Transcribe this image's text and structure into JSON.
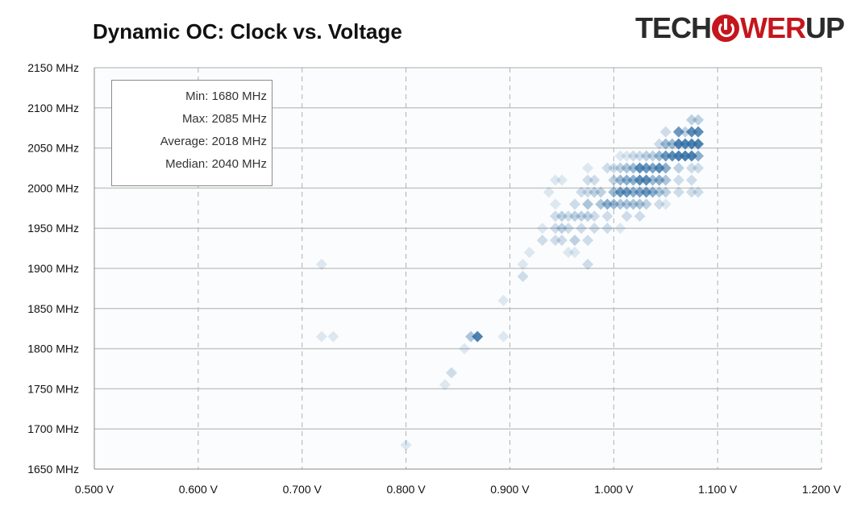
{
  "logo": {
    "text": "TECHPOWERUP",
    "part1": "TECH",
    "part2": "WER",
    "part3": "UP"
  },
  "chart_data": {
    "type": "scatter",
    "title": "Dynamic OC: Clock vs. Voltage",
    "xlabel": "",
    "ylabel": "",
    "xlim": [
      0.5,
      1.2
    ],
    "ylim": [
      1650,
      2150
    ],
    "x_ticks": [
      "0.500 V",
      "0.600 V",
      "0.700 V",
      "0.800 V",
      "0.900 V",
      "1.000 V",
      "1.100 V",
      "1.200 V"
    ],
    "y_ticks": [
      "2150 MHz",
      "2100 MHz",
      "2050 MHz",
      "2000 MHz",
      "1950 MHz",
      "1900 MHz",
      "1850 MHz",
      "1800 MHz",
      "1750 MHz",
      "1700 MHz",
      "1650 MHz"
    ],
    "grid": true,
    "color": "#2e6da4",
    "stats": [
      {
        "label": "Min:",
        "value": "1680 MHz"
      },
      {
        "label": "Max:",
        "value": "2085 MHz"
      },
      {
        "label": "Average:",
        "value": "2018 MHz"
      },
      {
        "label": "Median:",
        "value": "2040 MHz"
      }
    ],
    "points_format": [
      "voltage_V",
      "clock_MHz",
      "density"
    ],
    "points": [
      [
        1.075,
        2085,
        0.3
      ],
      [
        1.0813,
        2085,
        0.3
      ],
      [
        1.0625,
        2070,
        0.8
      ],
      [
        1.075,
        2070,
        0.9
      ],
      [
        1.0813,
        2070,
        0.9
      ],
      [
        1.05,
        2070,
        0.2
      ],
      [
        1.0688,
        2070,
        0.3
      ],
      [
        1.05,
        2055,
        0.5
      ],
      [
        1.0563,
        2055,
        0.5
      ],
      [
        1.0625,
        2055,
        1
      ],
      [
        1.0688,
        2055,
        1
      ],
      [
        1.075,
        2055,
        1
      ],
      [
        1.0813,
        2055,
        1
      ],
      [
        1.0438,
        2055,
        0.2
      ],
      [
        1.0375,
        2040,
        0.3
      ],
      [
        1.0438,
        2040,
        0.5
      ],
      [
        1.05,
        2040,
        0.8
      ],
      [
        1.0563,
        2040,
        0.9
      ],
      [
        1.0625,
        2040,
        1
      ],
      [
        1.0688,
        2040,
        1
      ],
      [
        1.075,
        2040,
        1
      ],
      [
        1.0813,
        2040,
        0.6
      ],
      [
        1.0313,
        2040,
        0.3
      ],
      [
        1.025,
        2040,
        0.2
      ],
      [
        1.0188,
        2040,
        0.2
      ],
      [
        1.0125,
        2040,
        0.1
      ],
      [
        1.0063,
        2040,
        0.1
      ],
      [
        0.975,
        2025,
        0.1
      ],
      [
        0.9938,
        2025,
        0.2
      ],
      [
        1.0,
        2025,
        0.2
      ],
      [
        1.0063,
        2025,
        0.3
      ],
      [
        1.0125,
        2025,
        0.4
      ],
      [
        1.0188,
        2025,
        0.5
      ],
      [
        1.025,
        2025,
        0.9
      ],
      [
        1.0313,
        2025,
        0.8
      ],
      [
        1.0375,
        2025,
        0.7
      ],
      [
        1.0438,
        2025,
        0.9
      ],
      [
        1.05,
        2025,
        0.6
      ],
      [
        1.0625,
        2025,
        0.3
      ],
      [
        1.075,
        2025,
        0.2
      ],
      [
        1.0813,
        2025,
        0.2
      ],
      [
        0.9438,
        2010,
        0.1
      ],
      [
        0.95,
        2010,
        0.1
      ],
      [
        0.975,
        2010,
        0.2
      ],
      [
        0.9813,
        2010,
        0.2
      ],
      [
        1.0,
        2010,
        0.3
      ],
      [
        1.0063,
        2010,
        0.5
      ],
      [
        1.0125,
        2010,
        0.6
      ],
      [
        1.0188,
        2010,
        0.6
      ],
      [
        1.025,
        2010,
        0.9
      ],
      [
        1.0313,
        2010,
        0.9
      ],
      [
        1.0375,
        2010,
        0.5
      ],
      [
        1.0438,
        2010,
        0.6
      ],
      [
        1.05,
        2010,
        0.4
      ],
      [
        1.0625,
        2010,
        0.2
      ],
      [
        1.075,
        2010,
        0.2
      ],
      [
        0.9375,
        1995,
        0.1
      ],
      [
        0.9688,
        1995,
        0.2
      ],
      [
        0.975,
        1995,
        0.2
      ],
      [
        0.9813,
        1995,
        0.3
      ],
      [
        0.9875,
        1995,
        0.3
      ],
      [
        1.0,
        1995,
        0.5
      ],
      [
        1.0063,
        1995,
        0.8
      ],
      [
        1.0125,
        1995,
        0.8
      ],
      [
        1.0188,
        1995,
        0.6
      ],
      [
        1.025,
        1995,
        0.7
      ],
      [
        1.0313,
        1995,
        0.8
      ],
      [
        1.0375,
        1995,
        0.6
      ],
      [
        1.0438,
        1995,
        0.4
      ],
      [
        1.05,
        1995,
        0.3
      ],
      [
        1.0625,
        1995,
        0.2
      ],
      [
        1.075,
        1995,
        0.2
      ],
      [
        1.0813,
        1995,
        0.2
      ],
      [
        0.9438,
        1980,
        0.1
      ],
      [
        0.9625,
        1980,
        0.2
      ],
      [
        0.975,
        1980,
        0.4
      ],
      [
        0.9875,
        1980,
        0.4
      ],
      [
        0.9938,
        1980,
        0.6
      ],
      [
        1.0,
        1980,
        0.5
      ],
      [
        1.0063,
        1980,
        0.4
      ],
      [
        1.0125,
        1980,
        0.4
      ],
      [
        1.0188,
        1980,
        0.4
      ],
      [
        1.025,
        1980,
        0.4
      ],
      [
        1.0313,
        1980,
        0.3
      ],
      [
        1.0438,
        1980,
        0.2
      ],
      [
        1.05,
        1980,
        0.1
      ],
      [
        0.9438,
        1965,
        0.2
      ],
      [
        0.95,
        1965,
        0.3
      ],
      [
        0.9563,
        1965,
        0.2
      ],
      [
        0.9625,
        1965,
        0.3
      ],
      [
        0.9688,
        1965,
        0.3
      ],
      [
        0.975,
        1965,
        0.3
      ],
      [
        0.9813,
        1965,
        0.2
      ],
      [
        0.9938,
        1965,
        0.2
      ],
      [
        1.0125,
        1965,
        0.2
      ],
      [
        1.025,
        1965,
        0.2
      ],
      [
        0.9313,
        1950,
        0.1
      ],
      [
        0.9438,
        1950,
        0.2
      ],
      [
        0.95,
        1950,
        0.3
      ],
      [
        0.9563,
        1950,
        0.2
      ],
      [
        0.9688,
        1950,
        0.2
      ],
      [
        0.9813,
        1950,
        0.2
      ],
      [
        0.9938,
        1950,
        0.2
      ],
      [
        1.0063,
        1950,
        0.1
      ],
      [
        0.9313,
        1935,
        0.2
      ],
      [
        0.9438,
        1935,
        0.2
      ],
      [
        0.95,
        1935,
        0.2
      ],
      [
        0.9625,
        1935,
        0.3
      ],
      [
        0.975,
        1935,
        0.2
      ],
      [
        0.9188,
        1920,
        0.1
      ],
      [
        0.9563,
        1920,
        0.1
      ],
      [
        0.9625,
        1920,
        0.1
      ],
      [
        0.7188,
        1905,
        0.1
      ],
      [
        0.9125,
        1905,
        0.1
      ],
      [
        0.975,
        1905,
        0.2
      ],
      [
        0.9125,
        1890,
        0.2
      ],
      [
        0.8938,
        1860,
        0.1
      ],
      [
        0.7188,
        1815,
        0.1
      ],
      [
        0.73,
        1815,
        0.1
      ],
      [
        0.8625,
        1815,
        0.4
      ],
      [
        0.8688,
        1815,
        1
      ],
      [
        0.8938,
        1815,
        0.1
      ],
      [
        0.8563,
        1800,
        0.1
      ],
      [
        0.8438,
        1770,
        0.2
      ],
      [
        0.8375,
        1755,
        0.1
      ],
      [
        0.8,
        1680,
        0.1
      ]
    ]
  }
}
